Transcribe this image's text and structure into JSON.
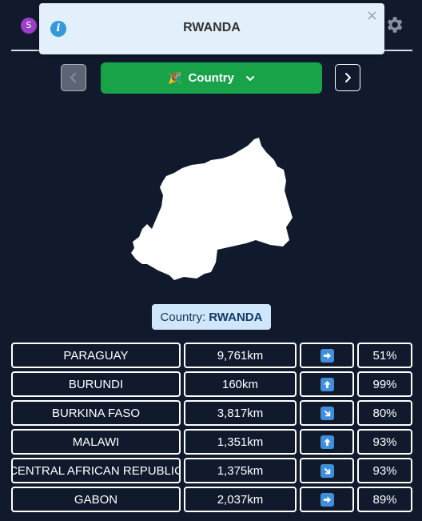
{
  "header": {
    "avatar_letter": "S"
  },
  "toast": {
    "title": "RWANDA",
    "close_symbol": "×"
  },
  "nav": {
    "dropdown_emoji": "🎉",
    "dropdown_label": "Country"
  },
  "answer": {
    "prefix": "Country:",
    "name": "RWANDA"
  },
  "guesses": [
    {
      "country": "PARAGUAY",
      "distance": "9,761km",
      "direction": "east",
      "percent": "51%"
    },
    {
      "country": "BURUNDI",
      "distance": "160km",
      "direction": "north",
      "percent": "99%"
    },
    {
      "country": "BURKINA FASO",
      "distance": "3,817km",
      "direction": "southeast",
      "percent": "80%"
    },
    {
      "country": "MALAWI",
      "distance": "1,351km",
      "direction": "north",
      "percent": "93%"
    },
    {
      "country": "CENTRAL AFRICAN REPUBLIC",
      "distance": "1,375km",
      "direction": "southeast",
      "percent": "93%"
    },
    {
      "country": "GABON",
      "distance": "2,037km",
      "direction": "east",
      "percent": "89%"
    }
  ],
  "colors": {
    "background": "#111a2d",
    "accent_green": "#18a349",
    "direction_blue": "#3f8fdc",
    "toast_bg": "#e3f0fb",
    "label_bg": "#cfe6fb"
  }
}
